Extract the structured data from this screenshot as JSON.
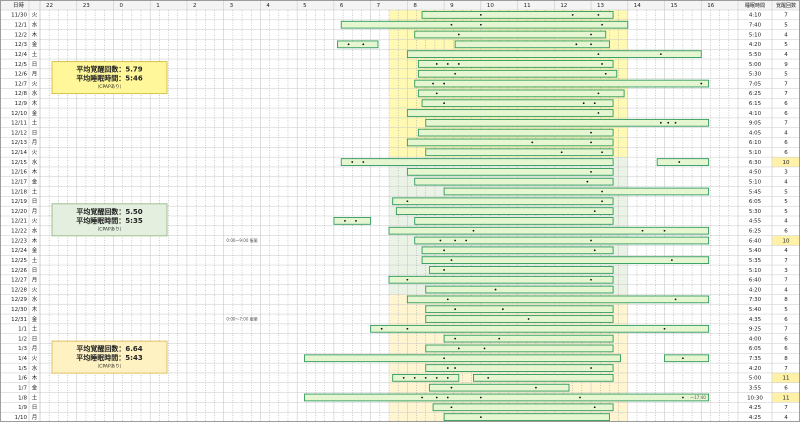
{
  "chart_data": {
    "type": "table",
    "header": {
      "date_col": "日時",
      "hours": [
        "22",
        "23",
        "0",
        "1",
        "2",
        "3",
        "4",
        "5",
        "6",
        "7",
        "8",
        "9",
        "10",
        "11",
        "12",
        "13",
        "14",
        "15",
        "16"
      ],
      "sleep_col": "睡眠時間",
      "wake_col": "覚醒回数"
    },
    "rows": [
      {
        "date": "11/30",
        "dow": "火",
        "sleep": "4:10",
        "wakes": 7,
        "bars": [
          [
            8.4,
            13.6
          ]
        ],
        "dots": [
          10.0,
          12.5,
          13.2
        ]
      },
      {
        "date": "12/1",
        "dow": "水",
        "sleep": "7:40",
        "wakes": 5,
        "bars": [
          [
            6.2,
            14.0
          ]
        ],
        "dots": [
          9.2,
          10.0,
          13.3
        ]
      },
      {
        "date": "12/2",
        "dow": "木",
        "sleep": "5:10",
        "wakes": 4,
        "bars": [
          [
            8.2,
            13.4
          ]
        ],
        "dots": [
          9.4,
          13.0
        ]
      },
      {
        "date": "12/3",
        "dow": "金",
        "sleep": "4:20",
        "wakes": 5,
        "bars": [
          [
            6.1,
            7.2
          ],
          [
            9.3,
            13.5
          ]
        ],
        "dots": [
          6.4,
          6.8,
          12.6,
          13.0
        ]
      },
      {
        "date": "12/4",
        "dow": "土",
        "sleep": "5:50",
        "wakes": 4,
        "bars": [
          [
            8.0,
            16.0
          ]
        ],
        "dots": [
          13.2,
          14.9
        ]
      },
      {
        "date": "12/5",
        "dow": "日",
        "sleep": "5:00",
        "wakes": 9,
        "bars": [
          [
            8.3,
            13.6
          ]
        ],
        "dots": [
          8.8,
          9.1,
          9.4,
          13.3
        ]
      },
      {
        "date": "12/6",
        "dow": "月",
        "sleep": "5:30",
        "wakes": 5,
        "bars": [
          [
            8.3,
            13.7
          ]
        ],
        "dots": [
          9.3,
          13.4
        ]
      },
      {
        "date": "12/7",
        "dow": "火",
        "sleep": "7:05",
        "wakes": 7,
        "bars": [
          [
            8.2,
            16.2
          ]
        ],
        "dots": [
          8.7,
          9.0,
          16.0
        ]
      },
      {
        "date": "12/8",
        "dow": "水",
        "sleep": "6:25",
        "wakes": 7,
        "bars": [
          [
            8.3,
            13.9
          ]
        ],
        "dots": [
          8.8,
          13.2
        ]
      },
      {
        "date": "12/9",
        "dow": "木",
        "sleep": "6:15",
        "wakes": 6,
        "bars": [
          [
            8.4,
            13.6
          ]
        ],
        "dots": [
          9.0,
          12.8,
          13.1
        ]
      },
      {
        "date": "12/10",
        "dow": "金",
        "sleep": "4:10",
        "wakes": 6,
        "bars": [
          [
            8.0,
            13.6
          ]
        ],
        "dots": [
          13.2
        ]
      },
      {
        "date": "12/11",
        "dow": "土",
        "sleep": "9:05",
        "wakes": 7,
        "bars": [
          [
            8.5,
            16.2
          ]
        ],
        "dots": [
          14.9,
          15.1,
          15.3
        ]
      },
      {
        "date": "12/12",
        "dow": "日",
        "sleep": "4:05",
        "wakes": 4,
        "bars": [
          [
            8.3,
            13.6
          ]
        ],
        "dots": [
          13.0
        ]
      },
      {
        "date": "12/13",
        "dow": "月",
        "sleep": "6:10",
        "wakes": 6,
        "bars": [
          [
            8.0,
            13.6
          ]
        ],
        "dots": [
          11.4,
          13.0
        ]
      },
      {
        "date": "12/14",
        "dow": "火",
        "sleep": "5:10",
        "wakes": 6,
        "bars": [
          [
            8.5,
            13.6
          ]
        ],
        "dots": [
          12.2,
          13.3
        ]
      },
      {
        "date": "12/15",
        "dow": "水",
        "sleep": "6:30",
        "wakes": 10,
        "bars": [
          [
            6.2,
            13.6
          ],
          [
            14.8,
            16.2
          ]
        ],
        "dots": [
          6.5,
          6.8,
          15.4
        ]
      },
      {
        "date": "12/16",
        "dow": "木",
        "sleep": "4:50",
        "wakes": 3,
        "bars": [
          [
            8.0,
            13.6
          ]
        ],
        "dots": [
          13.0
        ]
      },
      {
        "date": "12/17",
        "dow": "金",
        "sleep": "5:10",
        "wakes": 4,
        "bars": [
          [
            8.2,
            13.6
          ]
        ],
        "dots": [
          12.9
        ]
      },
      {
        "date": "12/18",
        "dow": "土",
        "sleep": "5:45",
        "wakes": 5,
        "bars": [
          [
            9.0,
            16.2
          ]
        ],
        "dots": [
          13.3
        ]
      },
      {
        "date": "12/19",
        "dow": "日",
        "sleep": "6:05",
        "wakes": 5,
        "bars": [
          [
            7.6,
            13.6
          ]
        ],
        "dots": [
          8.0,
          13.3
        ]
      },
      {
        "date": "12/20",
        "dow": "月",
        "sleep": "5:30",
        "wakes": 5,
        "bars": [
          [
            7.7,
            13.6
          ]
        ],
        "dots": [
          13.1
        ]
      },
      {
        "date": "12/21",
        "dow": "火",
        "sleep": "4:55",
        "wakes": 4,
        "bars": [
          [
            6.0,
            7.0
          ],
          [
            8.2,
            13.6
          ]
        ],
        "dots": [
          6.3,
          6.6
        ]
      },
      {
        "date": "12/22",
        "dow": "水",
        "sleep": "6:25",
        "wakes": 6,
        "bars": [
          [
            7.5,
            16.2
          ]
        ],
        "dots": [
          9.8,
          14.4,
          15.0
        ]
      },
      {
        "date": "12/23",
        "dow": "木",
        "sleep": "6:40",
        "wakes": 10,
        "bars": [
          [
            8.2,
            16.2
          ]
        ],
        "dots": [
          8.9,
          9.3,
          9.6,
          13.0
        ]
      },
      {
        "date": "12/24",
        "dow": "金",
        "sleep": "5:40",
        "wakes": 4,
        "bars": [
          [
            8.4,
            13.6
          ]
        ],
        "dots": [
          9.0,
          13.1
        ]
      },
      {
        "date": "12/25",
        "dow": "土",
        "sleep": "5:35",
        "wakes": 7,
        "bars": [
          [
            8.4,
            16.2
          ]
        ],
        "dots": [
          9.2,
          15.2
        ]
      },
      {
        "date": "12/26",
        "dow": "日",
        "sleep": "5:10",
        "wakes": 3,
        "bars": [
          [
            8.6,
            13.6
          ]
        ],
        "dots": [
          9.0
        ]
      },
      {
        "date": "12/27",
        "dow": "月",
        "sleep": "6:40",
        "wakes": 7,
        "bars": [
          [
            7.5,
            13.6
          ]
        ],
        "dots": [
          8.0,
          13.0
        ]
      },
      {
        "date": "12/28",
        "dow": "火",
        "sleep": "4:20",
        "wakes": 4,
        "bars": [
          [
            8.5,
            13.6
          ]
        ],
        "dots": [
          10.4
        ]
      },
      {
        "date": "12/29",
        "dow": "水",
        "sleep": "7:30",
        "wakes": 8,
        "bars": [
          [
            8.0,
            16.2
          ]
        ],
        "dots": [
          9.1,
          15.3
        ]
      },
      {
        "date": "12/30",
        "dow": "木",
        "sleep": "5:40",
        "wakes": 5,
        "bars": [
          [
            8.5,
            13.6
          ]
        ],
        "dots": [
          9.3,
          10.6
        ]
      },
      {
        "date": "12/31",
        "dow": "金",
        "sleep": "4:35",
        "wakes": 6,
        "bars": [
          [
            8.5,
            13.6
          ]
        ],
        "dots": [
          11.3
        ]
      },
      {
        "date": "1/1",
        "dow": "土",
        "sleep": "9:25",
        "wakes": 7,
        "bars": [
          [
            7.0,
            16.2
          ]
        ],
        "dots": [
          7.3,
          8.0,
          15.0
        ]
      },
      {
        "date": "1/2",
        "dow": "日",
        "sleep": "4:00",
        "wakes": 6,
        "bars": [
          [
            9.0,
            13.6
          ]
        ],
        "dots": [
          9.3,
          10.5
        ]
      },
      {
        "date": "1/3",
        "dow": "月",
        "sleep": "6:05",
        "wakes": 6,
        "bars": [
          [
            8.5,
            13.6
          ]
        ],
        "dots": [
          9.4,
          10.1
        ]
      },
      {
        "date": "1/4",
        "dow": "火",
        "sleep": "7:35",
        "wakes": 8,
        "bars": [
          [
            5.2,
            13.8
          ],
          [
            15.0,
            16.2
          ]
        ],
        "dots": [
          9.0,
          15.5
        ]
      },
      {
        "date": "1/5",
        "dow": "水",
        "sleep": "4:20",
        "wakes": 7,
        "bars": [
          [
            8.5,
            13.6
          ]
        ],
        "dots": [
          9.1,
          9.3,
          13.0
        ]
      },
      {
        "date": "1/6",
        "dow": "木",
        "sleep": "5:00",
        "wakes": 11,
        "bars": [
          [
            7.6,
            9.4
          ],
          [
            9.8,
            13.6
          ]
        ],
        "dots": [
          7.9,
          8.2,
          8.5,
          8.8,
          9.1,
          10.2
        ]
      },
      {
        "date": "1/7",
        "dow": "金",
        "sleep": "3:55",
        "wakes": 6,
        "bars": [
          [
            8.6,
            12.4
          ]
        ],
        "dots": [
          9.2,
          11.5
        ]
      },
      {
        "date": "1/8",
        "dow": "土",
        "sleep": "10:30",
        "wakes": 11,
        "bars": [
          [
            5.2,
            16.2
          ]
        ],
        "dots": [
          8.4,
          8.8,
          9.1,
          10.0,
          12.7,
          15.5
        ]
      },
      {
        "date": "1/9",
        "dow": "日",
        "sleep": "4:25",
        "wakes": 7,
        "bars": [
          [
            8.7,
            13.6
          ]
        ],
        "dots": [
          9.2,
          13.1
        ]
      },
      {
        "date": "1/10",
        "dow": "月",
        "sleep": "4:25",
        "wakes": 4,
        "bars": [
          [
            9.0,
            13.5
          ]
        ],
        "dots": [
          10.0
        ]
      }
    ],
    "period_notes": [
      {
        "row": 23,
        "text": "0:00〜9:00 服薬"
      },
      {
        "row": 31,
        "text": "0:00〜7:00 服薬"
      },
      {
        "row": 39,
        "text": "〜17:40"
      }
    ],
    "summaries": [
      {
        "label1": "平均覚醒回数：5.79",
        "label2": "平均睡眠時間：5:46",
        "note": "（CPAPあり）",
        "fill": "#fff79a",
        "stroke": "#d8c24a",
        "startRow": 0,
        "endRow": 15
      },
      {
        "label1": "平均覚醒回数：5.50",
        "label2": "平均睡眠時間：5:35",
        "note": "（CPAPあり）",
        "fill": "#e4efdf",
        "stroke": "#9fbf8f",
        "startRow": 15,
        "endRow": 29
      },
      {
        "label1": "平均覚醒回数：6.64",
        "label2": "平均睡眠時間：5:43",
        "note": "（CPAPあり）",
        "fill": "#fff2c2",
        "stroke": "#e0c067",
        "startRow": 29,
        "endRow": 43
      }
    ],
    "highlight_threshold": 10,
    "colors": {
      "bar_fill": "#e6f6d0",
      "bar_stroke": "#2f9a5e",
      "grid": "#c9c9c9",
      "grid_dotted": "#9a9a9a",
      "header_bg": "#f4f4f4",
      "highlight_cell": "#fff2a8",
      "text": "#222222"
    }
  }
}
